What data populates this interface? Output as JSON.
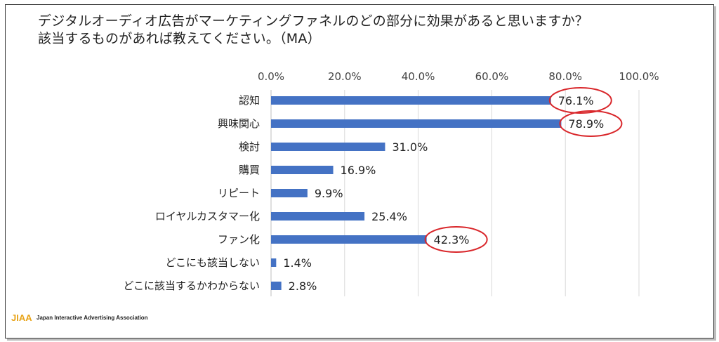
{
  "title": {
    "line1": "デジタルオーディオ広告がマーケティングファネルのどの部分に効果があると思いますか？",
    "line2": "該当するものがあれば教えてください。（MA）"
  },
  "chart_data": {
    "type": "bar",
    "orientation": "horizontal",
    "categories": [
      "認知",
      "興味関心",
      "検討",
      "購買",
      "リピート",
      "ロイヤルカスタマー化",
      "ファン化",
      "どこにも該当しない",
      "どこに該当するかわからない"
    ],
    "values": [
      76.1,
      78.9,
      31.0,
      16.9,
      9.9,
      25.4,
      42.3,
      1.4,
      2.8
    ],
    "value_labels": [
      "76.1%",
      "78.9%",
      "31.0%",
      "16.9%",
      "9.9%",
      "25.4%",
      "42.3%",
      "1.4%",
      "2.8%"
    ],
    "xlim": [
      0,
      100
    ],
    "x_ticks": [
      "0.0%",
      "20.0%",
      "40.0%",
      "60.0%",
      "80.0%",
      "100.0%"
    ],
    "x_axis_position": "top",
    "grid": true,
    "legend": "none",
    "bar_color": "#4472c4",
    "highlight_color": "#d9262a",
    "highlighted_categories": [
      "認知",
      "興味関心",
      "ファン化"
    ]
  },
  "footer": {
    "logo_mark": "JIAA",
    "logo_text": "Japan Interactive Advertising Association"
  }
}
